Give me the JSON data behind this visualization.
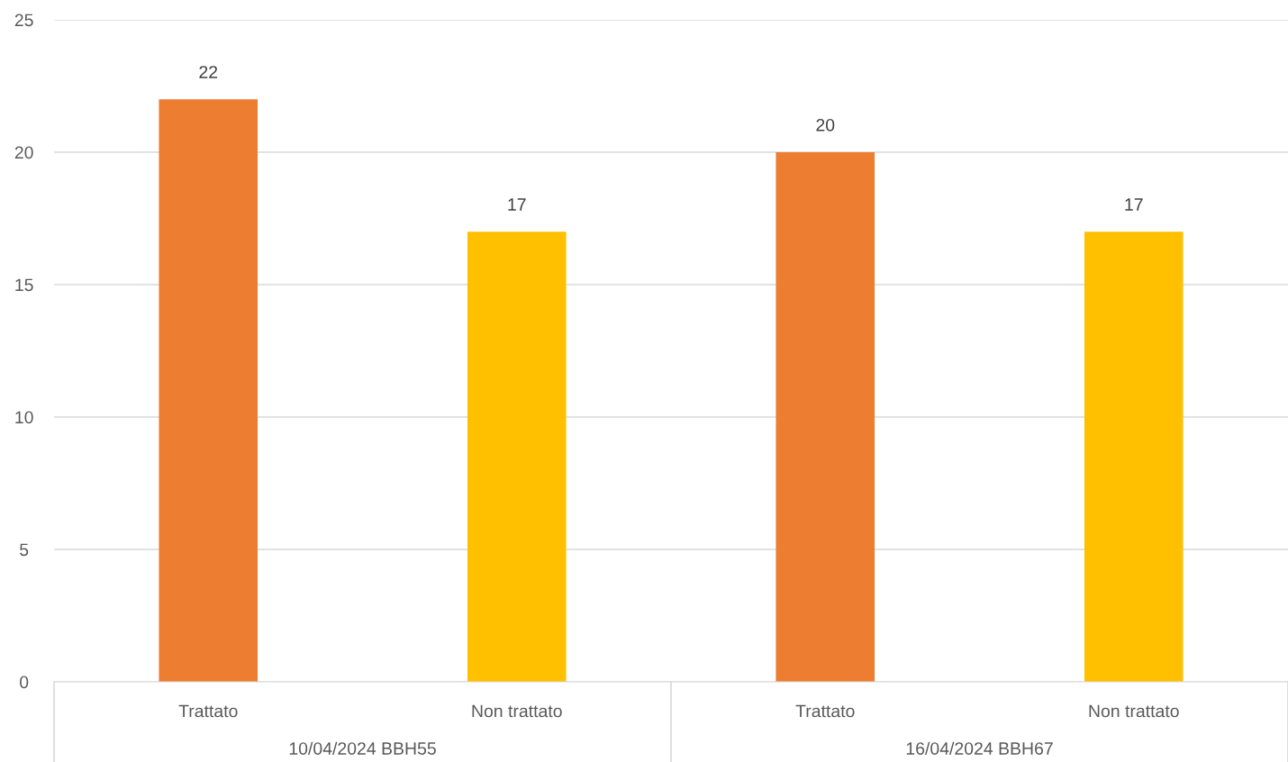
{
  "chart_data": {
    "type": "bar",
    "categories": [
      "Trattato",
      "Non trattato",
      "Trattato",
      "Non trattato"
    ],
    "values": [
      22,
      17,
      20,
      17
    ],
    "colors": [
      "#ed7d31",
      "#ffc000",
      "#ed7d31",
      "#ffc000"
    ],
    "ylim": [
      0,
      25
    ],
    "yticks": [
      0,
      5,
      10,
      15,
      20,
      25
    ],
    "grid": "y",
    "data_labels": true,
    "annotations": [
      "10/04/2024 BBH55",
      "16/04/2024 BBH67"
    ]
  }
}
